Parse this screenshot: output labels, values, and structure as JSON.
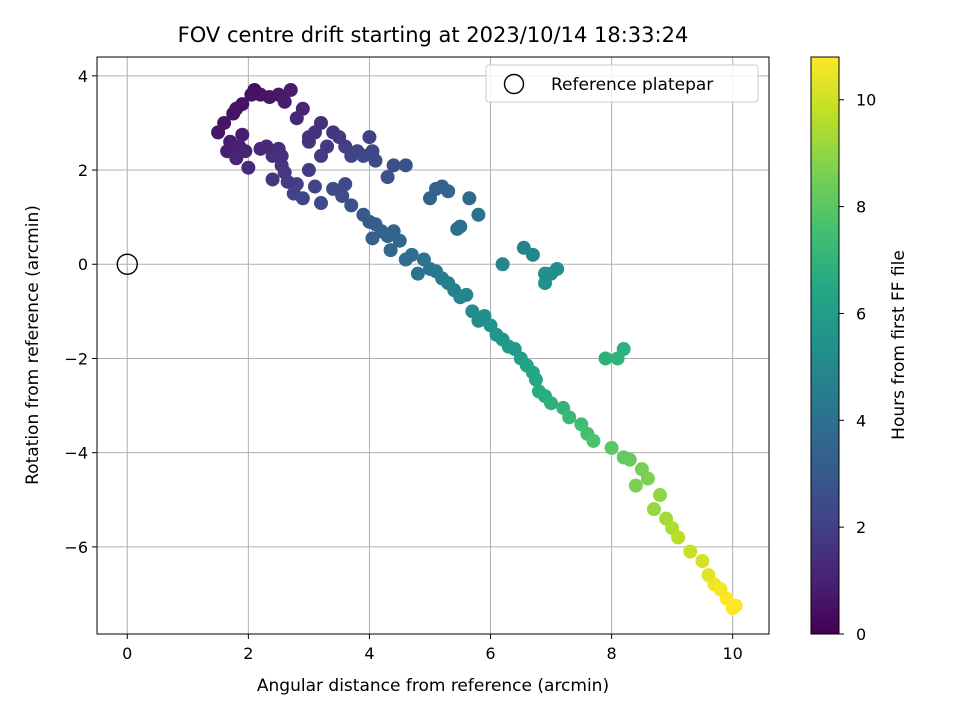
{
  "chart_data": {
    "type": "scatter",
    "title": "FOV centre drift starting at 2023/10/14 18:33:24",
    "xlabel": "Angular distance from reference (arcmin)",
    "ylabel": "Rotation from reference (arcmin)",
    "xlim": [
      -0.5,
      10.6
    ],
    "ylim": [
      -7.85,
      4.4
    ],
    "xticks": [
      0,
      2,
      4,
      6,
      8,
      10
    ],
    "xtick_labels": [
      "0",
      "2",
      "4",
      "6",
      "8",
      "10"
    ],
    "yticks": [
      4,
      2,
      0,
      -2,
      -4,
      -6
    ],
    "ytick_labels": [
      "4",
      "2",
      "0",
      "−2",
      "−4",
      "−6"
    ],
    "grid": true,
    "colorbar": {
      "label": "Hours from first FF file",
      "range": [
        0,
        10.8
      ],
      "colormap": "viridis",
      "ticks": [
        0,
        2,
        4,
        6,
        8,
        10
      ],
      "tick_labels": [
        "0",
        "2",
        "4",
        "6",
        "8",
        "10"
      ]
    },
    "legend": {
      "position": "top-right",
      "entries": [
        {
          "label": "Reference platepar",
          "marker": "open-circle"
        }
      ]
    },
    "reference_point": {
      "x": 0,
      "y": 0
    },
    "series": [
      {
        "points": [
          [
            7.9,
            -2.0
          ],
          [
            8.2,
            -1.8
          ],
          [
            8.1,
            -2.0
          ],
          [
            6.9,
            -0.4
          ],
          [
            7.0,
            -0.2
          ],
          [
            7.1,
            -0.1
          ],
          [
            6.9,
            -0.2
          ],
          [
            6.2,
            0.0
          ],
          [
            6.7,
            0.2
          ],
          [
            6.55,
            0.35
          ],
          [
            5.8,
            1.05
          ],
          [
            5.5,
            0.8
          ],
          [
            5.45,
            0.75
          ],
          [
            5.65,
            1.4
          ],
          [
            5.1,
            1.6
          ],
          [
            5.2,
            1.65
          ],
          [
            5.3,
            1.55
          ],
          [
            5.0,
            1.4
          ],
          [
            4.6,
            2.1
          ],
          [
            4.4,
            2.1
          ],
          [
            4.3,
            1.85
          ],
          [
            4.1,
            2.2
          ],
          [
            4.05,
            2.4
          ],
          [
            4.0,
            2.7
          ],
          [
            3.8,
            2.4
          ],
          [
            3.9,
            2.3
          ],
          [
            3.6,
            2.5
          ],
          [
            3.7,
            2.3
          ],
          [
            3.5,
            2.7
          ],
          [
            3.4,
            2.8
          ],
          [
            3.3,
            2.5
          ],
          [
            3.2,
            2.3
          ],
          [
            3.1,
            2.8
          ],
          [
            3.2,
            3.0
          ],
          [
            3.0,
            2.6
          ],
          [
            2.9,
            3.3
          ],
          [
            2.8,
            3.1
          ],
          [
            3.0,
            2.7
          ],
          [
            2.6,
            3.45
          ],
          [
            2.5,
            3.6
          ],
          [
            2.7,
            3.7
          ],
          [
            2.35,
            3.55
          ],
          [
            2.2,
            3.6
          ],
          [
            2.1,
            3.7
          ],
          [
            2.05,
            3.6
          ],
          [
            1.9,
            3.4
          ],
          [
            1.8,
            3.3
          ],
          [
            1.75,
            3.2
          ],
          [
            1.6,
            3.0
          ],
          [
            1.5,
            2.8
          ],
          [
            1.7,
            2.6
          ],
          [
            1.9,
            2.75
          ],
          [
            1.85,
            2.5
          ],
          [
            1.65,
            2.4
          ],
          [
            1.8,
            2.25
          ],
          [
            1.95,
            2.4
          ],
          [
            2.0,
            2.05
          ],
          [
            2.2,
            2.45
          ],
          [
            2.3,
            2.5
          ],
          [
            2.5,
            2.45
          ],
          [
            2.4,
            2.3
          ],
          [
            2.55,
            2.1
          ],
          [
            2.4,
            1.8
          ],
          [
            2.6,
            1.95
          ],
          [
            2.8,
            1.7
          ],
          [
            2.65,
            1.75
          ],
          [
            2.55,
            2.3
          ],
          [
            2.75,
            1.5
          ],
          [
            2.9,
            1.4
          ],
          [
            3.1,
            1.65
          ],
          [
            3.0,
            2.0
          ],
          [
            3.2,
            1.3
          ],
          [
            3.4,
            1.6
          ],
          [
            3.6,
            1.7
          ],
          [
            3.55,
            1.45
          ],
          [
            3.7,
            1.25
          ],
          [
            3.9,
            1.05
          ],
          [
            4.0,
            0.9
          ],
          [
            4.1,
            0.85
          ],
          [
            4.05,
            0.55
          ],
          [
            4.2,
            0.7
          ],
          [
            4.3,
            0.6
          ],
          [
            4.4,
            0.7
          ],
          [
            4.35,
            0.3
          ],
          [
            4.5,
            0.5
          ],
          [
            4.6,
            0.1
          ],
          [
            4.7,
            0.2
          ],
          [
            4.8,
            -0.2
          ],
          [
            4.9,
            0.1
          ],
          [
            5.0,
            -0.1
          ],
          [
            5.1,
            -0.15
          ],
          [
            5.2,
            -0.3
          ],
          [
            5.3,
            -0.4
          ],
          [
            5.4,
            -0.55
          ],
          [
            5.5,
            -0.7
          ],
          [
            5.6,
            -0.65
          ],
          [
            5.7,
            -1.0
          ],
          [
            5.8,
            -1.2
          ],
          [
            5.9,
            -1.1
          ],
          [
            6.0,
            -1.3
          ],
          [
            6.1,
            -1.5
          ],
          [
            6.2,
            -1.6
          ],
          [
            6.3,
            -1.75
          ],
          [
            6.4,
            -1.8
          ],
          [
            6.5,
            -2.0
          ],
          [
            6.6,
            -2.15
          ],
          [
            6.7,
            -2.3
          ],
          [
            6.75,
            -2.45
          ],
          [
            6.8,
            -2.7
          ],
          [
            6.9,
            -2.8
          ],
          [
            7.0,
            -2.95
          ],
          [
            7.2,
            -3.05
          ],
          [
            7.3,
            -3.25
          ],
          [
            7.5,
            -3.4
          ],
          [
            7.6,
            -3.6
          ],
          [
            7.7,
            -3.75
          ],
          [
            8.0,
            -3.9
          ],
          [
            8.2,
            -4.1
          ],
          [
            8.3,
            -4.15
          ],
          [
            8.5,
            -4.35
          ],
          [
            8.6,
            -4.55
          ],
          [
            8.4,
            -4.7
          ],
          [
            8.8,
            -4.9
          ],
          [
            8.7,
            -5.2
          ],
          [
            8.9,
            -5.4
          ],
          [
            9.0,
            -5.6
          ],
          [
            9.1,
            -5.8
          ],
          [
            9.3,
            -6.1
          ],
          [
            9.5,
            -6.3
          ],
          [
            9.6,
            -6.6
          ],
          [
            9.7,
            -6.8
          ],
          [
            9.9,
            -7.1
          ],
          [
            10.0,
            -7.3
          ],
          [
            10.05,
            -7.25
          ],
          [
            9.8,
            -6.9
          ]
        ]
      }
    ]
  }
}
